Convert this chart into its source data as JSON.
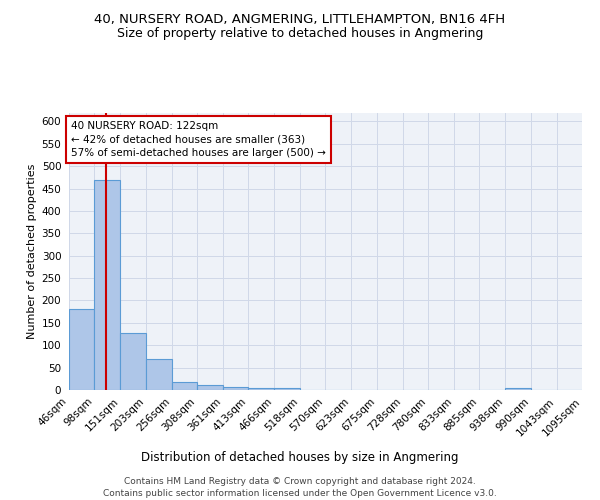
{
  "title1": "40, NURSERY ROAD, ANGMERING, LITTLEHAMPTON, BN16 4FH",
  "title2": "Size of property relative to detached houses in Angmering",
  "xlabel": "Distribution of detached houses by size in Angmering",
  "ylabel": "Number of detached properties",
  "bins": [
    46,
    98,
    151,
    203,
    256,
    308,
    361,
    413,
    466,
    518,
    570,
    623,
    675,
    728,
    780,
    833,
    885,
    938,
    990,
    1043,
    1095
  ],
  "bar_heights": [
    180,
    470,
    128,
    70,
    18,
    12,
    7,
    5,
    5,
    0,
    0,
    0,
    0,
    0,
    0,
    0,
    0,
    5,
    0,
    0
  ],
  "bar_color": "#aec6e8",
  "bar_edgecolor": "#5b9bd5",
  "bar_linewidth": 0.8,
  "grid_color": "#d0d8e8",
  "background_color": "#eef2f8",
  "red_line_x": 122,
  "red_line_color": "#cc0000",
  "annotation_text": "40 NURSERY ROAD: 122sqm\n← 42% of detached houses are smaller (363)\n57% of semi-detached houses are larger (500) →",
  "annotation_box_edgecolor": "#cc0000",
  "annotation_box_facecolor": "white",
  "ylim": [
    0,
    620
  ],
  "yticks": [
    0,
    50,
    100,
    150,
    200,
    250,
    300,
    350,
    400,
    450,
    500,
    550,
    600
  ],
  "footer_text": "Contains HM Land Registry data © Crown copyright and database right 2024.\nContains public sector information licensed under the Open Government Licence v3.0.",
  "title1_fontsize": 9.5,
  "title2_fontsize": 9,
  "xlabel_fontsize": 8.5,
  "ylabel_fontsize": 8,
  "tick_fontsize": 7.5,
  "annotation_fontsize": 7.5,
  "footer_fontsize": 6.5
}
